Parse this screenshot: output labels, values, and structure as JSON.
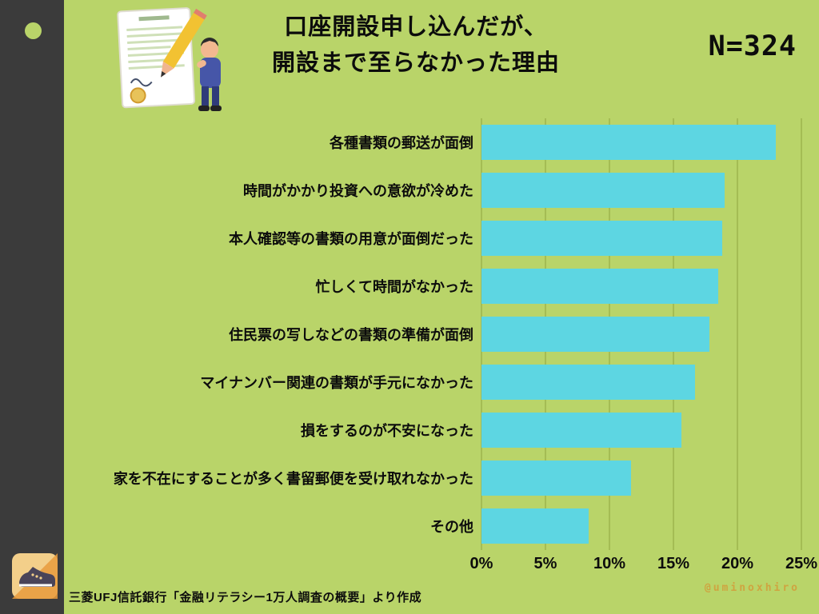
{
  "colors": {
    "background": "#b9d469",
    "sidebar": "#3b3b3b",
    "bar": "#5dd6e2",
    "gridline": "#a4bc54",
    "watermark": "#cfa440"
  },
  "header": {
    "title_line1": "口座開設申し込んだが、",
    "title_line2": "開設まで至らなかった理由",
    "sample_size": "N=324"
  },
  "icons": {
    "header_illustration": "contract-signing-illustration",
    "sidebar_dot": "green-dot",
    "footer_logo": "shoe-logo"
  },
  "chart_data": {
    "type": "bar",
    "orientation": "horizontal",
    "title": "口座開設申し込んだが、開設まで至らなかった理由",
    "categories": [
      "各種書類の郵送が面倒",
      "時間がかかり投資への意欲が冷めた",
      "本人確認等の書類の用意が面倒だった",
      "忙しくて時間がなかった",
      "住民票の写しなどの書類の準備が面倒",
      "マイナンバー関連の書類が手元になかった",
      "損をするのが不安になった",
      "家を不在にすることが多く書留郵便を受け取れなかった",
      "その他"
    ],
    "values": [
      23,
      19,
      18.8,
      18.5,
      17.8,
      16.7,
      15.6,
      11.7,
      8.4
    ],
    "xlim": [
      0,
      25
    ],
    "xticks": [
      0,
      5,
      10,
      15,
      20,
      25
    ],
    "xtick_labels": [
      "0%",
      "5%",
      "10%",
      "15%",
      "20%",
      "25%"
    ],
    "grid": true,
    "legend": false
  },
  "footer": {
    "source": "三菱UFJ信託銀行「金融リテラシー1万人調査の概要」より作成",
    "watermark": "@uminoxhiro"
  }
}
